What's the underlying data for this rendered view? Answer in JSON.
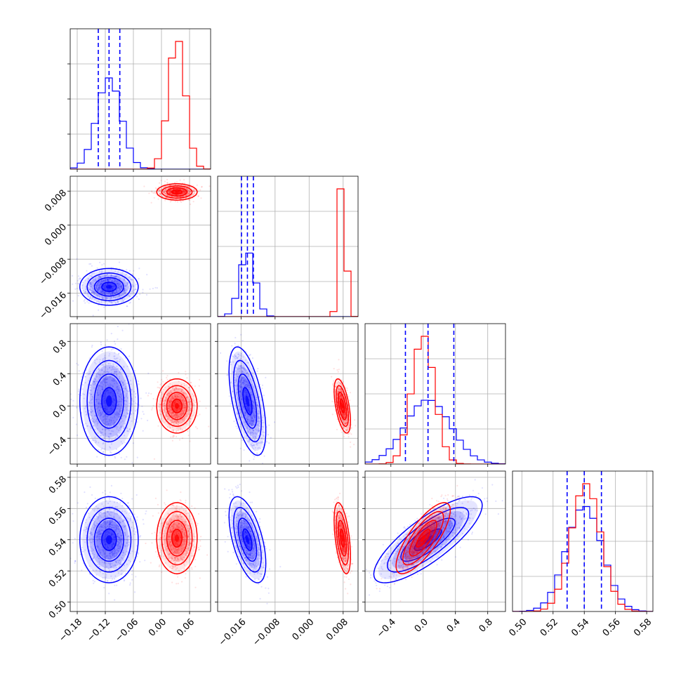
{
  "chart_data": {
    "type": "corner",
    "n_params": 4,
    "grid": true,
    "colors": {
      "blue": "#0000ff",
      "red": "#ff0000"
    },
    "axes": [
      {
        "range": [
          -0.195,
          0.105
        ],
        "ticks": [
          -0.18,
          -0.12,
          -0.06,
          0.0,
          0.06
        ],
        "tick_labels": [
          "−0.18",
          "−0.12",
          "−0.06",
          "0.00",
          "0.06"
        ]
      },
      {
        "range": [
          -0.0215,
          0.0115
        ],
        "ticks": [
          -0.016,
          -0.008,
          0.0,
          0.008
        ],
        "tick_labels": [
          "−0.016",
          "−0.008",
          "0.000",
          "0.008"
        ]
      },
      {
        "range": [
          -0.72,
          1.02
        ],
        "ticks": [
          -0.4,
          0.0,
          0.4,
          0.8
        ],
        "tick_labels": [
          "−0.4",
          "0.0",
          "0.4",
          "0.8"
        ]
      },
      {
        "range": [
          0.494,
          0.584
        ],
        "ticks": [
          0.5,
          0.52,
          0.54,
          0.56,
          0.58
        ],
        "tick_labels": [
          "0.50",
          "0.52",
          "0.54",
          "0.56",
          "0.58"
        ]
      }
    ],
    "series": [
      {
        "color": "blue",
        "mean": [
          -0.112,
          -0.0145,
          0.06,
          0.54
        ],
        "std": [
          0.026,
          0.0018,
          0.28,
          0.0115
        ],
        "quantiles": [
          [
            -0.135,
            -0.112,
            -0.089
          ],
          [
            -0.0159,
            -0.0145,
            -0.0131
          ],
          [
            -0.22,
            0.06,
            0.38
          ],
          [
            0.529,
            0.54,
            0.551
          ]
        ],
        "corr": [
          [
            1.0,
            0.0,
            0.0,
            0.0
          ],
          [
            0.0,
            1.0,
            -0.55,
            -0.55
          ],
          [
            0.0,
            -0.55,
            1.0,
            0.8
          ],
          [
            0.0,
            -0.55,
            0.8,
            1.0
          ]
        ]
      },
      {
        "color": "red",
        "mean": [
          0.033,
          0.0078,
          0.0,
          0.541
        ],
        "std": [
          0.018,
          0.0008,
          0.14,
          0.0095
        ],
        "corr": [
          [
            1.0,
            0.0,
            0.0,
            0.0
          ],
          [
            0.0,
            1.0,
            -0.55,
            -0.5
          ],
          [
            0.0,
            -0.55,
            1.0,
            0.78
          ],
          [
            0.0,
            -0.5,
            0.78,
            1.0
          ]
        ]
      }
    ]
  }
}
